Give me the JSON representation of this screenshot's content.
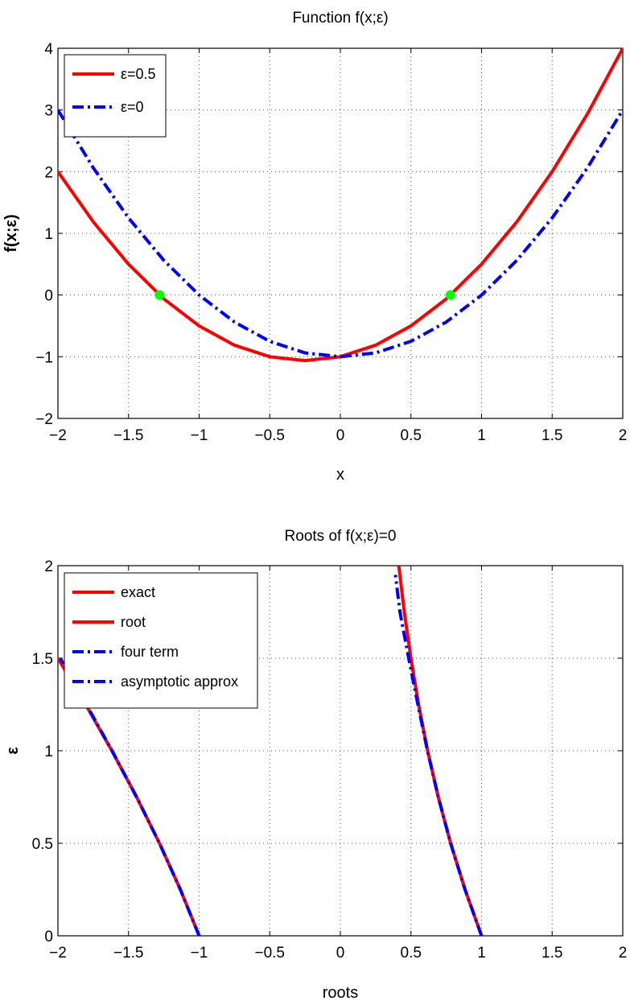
{
  "chart_data": [
    {
      "type": "line",
      "title": "Function f(x;ε)",
      "xlabel": "x",
      "ylabel": "f(x;ε)",
      "xlim": [
        -2,
        2
      ],
      "ylim": [
        -2,
        4
      ],
      "xticks": [
        -2,
        -1.5,
        -1,
        -0.5,
        0,
        0.5,
        1,
        1.5,
        2
      ],
      "yticks": [
        -2,
        -1,
        0,
        1,
        2,
        3,
        4
      ],
      "xtick_labels": [
        "−2",
        "−1.5",
        "−1",
        "−0.5",
        "0",
        "0.5",
        "1",
        "1.5",
        "2"
      ],
      "ytick_labels": [
        "−2",
        "−1",
        "0",
        "1",
        "2",
        "3",
        "4"
      ],
      "grid": true,
      "legend_position": "top-left",
      "series": [
        {
          "name": "ε=0.5",
          "color": "#ff0000",
          "style": "solid",
          "x": [
            -2,
            -1.75,
            -1.5,
            -1.25,
            -1,
            -0.75,
            -0.5,
            -0.25,
            0,
            0.25,
            0.5,
            0.75,
            1,
            1.25,
            1.5,
            1.75,
            2
          ],
          "y": [
            2,
            1.1875,
            0.5,
            -0.0625,
            -0.5,
            -0.8125,
            -1,
            -1.0625,
            -1,
            -0.8125,
            -0.5,
            -0.0625,
            0.5,
            1.1875,
            2,
            2.9375,
            4
          ]
        },
        {
          "name": "ε=0",
          "color": "#0000ff",
          "style": "dashdot",
          "x": [
            -2,
            -1.75,
            -1.5,
            -1.25,
            -1,
            -0.75,
            -0.5,
            -0.25,
            0,
            0.25,
            0.5,
            0.75,
            1,
            1.25,
            1.5,
            1.75,
            2
          ],
          "y": [
            3,
            2.0625,
            1.25,
            0.5625,
            0,
            -0.4375,
            -0.75,
            -0.9375,
            -1,
            -0.9375,
            -0.75,
            -0.4375,
            0,
            0.5625,
            1.25,
            2.0625,
            3
          ]
        }
      ],
      "markers": {
        "color": "#00ff00",
        "points": [
          [
            -1.28,
            0
          ],
          [
            0.78,
            0
          ]
        ]
      }
    },
    {
      "type": "line",
      "title": "Roots of f(x;ε)=0",
      "xlabel": "roots",
      "ylabel": "ε",
      "xlim": [
        -2,
        2
      ],
      "ylim": [
        0,
        2
      ],
      "xticks": [
        -2,
        -1.5,
        -1,
        -0.5,
        0,
        0.5,
        1,
        1.5,
        2
      ],
      "yticks": [
        0,
        0.5,
        1,
        1.5,
        2
      ],
      "xtick_labels": [
        "−2",
        "−1.5",
        "−1",
        "−0.5",
        "0",
        "0.5",
        "1",
        "1.5",
        "2"
      ],
      "ytick_labels": [
        "0",
        "0.5",
        "1",
        "1.5",
        "2"
      ],
      "grid": true,
      "legend_position": "top-left",
      "legend_entries": [
        {
          "label": "exact",
          "color": "#ff0000",
          "style": "solid"
        },
        {
          "label": "root",
          "color": "#ff0000",
          "style": "solid"
        },
        {
          "label": "four term",
          "color": "#0000ff",
          "style": "dashdot"
        },
        {
          "label": " asymptotic approx",
          "color": "#0000ff",
          "style": "dashdot"
        }
      ],
      "series": [
        {
          "color": "#ff0000",
          "style": "solid",
          "y": [
            0,
            0.25,
            0.5,
            0.75,
            1,
            1.25,
            1.5
          ],
          "x": [
            -1,
            -1.133,
            -1.281,
            -1.443,
            -1.618,
            -1.804,
            -2
          ]
        },
        {
          "color": "#ff0000",
          "style": "solid",
          "y": [
            0,
            0.25,
            0.5,
            0.75,
            1,
            1.25,
            1.5,
            1.75,
            2
          ],
          "x": [
            1,
            0.883,
            0.781,
            0.693,
            0.618,
            0.554,
            0.5,
            0.453,
            0.414
          ]
        },
        {
          "color": "#0000ff",
          "style": "dashdot",
          "y": [
            0,
            0.25,
            0.5,
            0.75,
            1,
            1.25,
            1.5
          ],
          "x": [
            -1,
            -1.133,
            -1.281,
            -1.443,
            -1.617,
            -1.799,
            -1.984
          ]
        },
        {
          "color": "#0000ff",
          "style": "dashdot",
          "y": [
            0,
            0.25,
            0.5,
            0.75,
            1,
            1.25,
            1.5,
            1.75,
            1.95
          ],
          "x": [
            1,
            0.883,
            0.781,
            0.694,
            0.617,
            0.549,
            0.484,
            0.422,
            0.39
          ]
        }
      ]
    }
  ]
}
